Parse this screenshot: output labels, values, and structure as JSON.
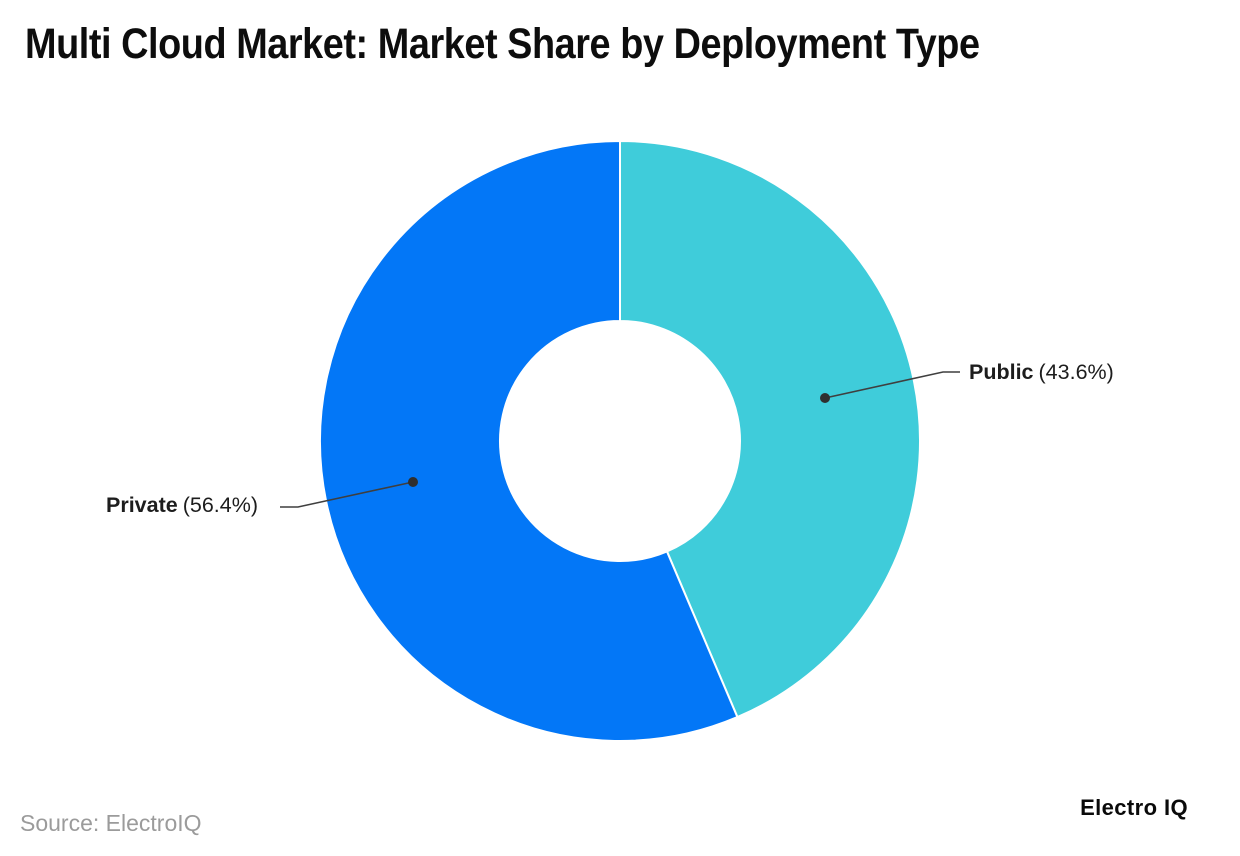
{
  "title": "Multi Cloud Market: Market Share by Deployment Type",
  "source": "Source: ElectroIQ",
  "brand": "Electro IQ",
  "colors": {
    "public_slice": "#3fccda",
    "private_slice": "#0377f7",
    "leader_line": "#3f3f3f",
    "leader_dot": "#2f2f2f",
    "title_text": "#0d0d0d",
    "source_text": "#9b9b9b"
  },
  "chart_data": {
    "type": "pie",
    "subtype": "donut",
    "title": "Multi Cloud Market: Market Share by Deployment Type",
    "categories": [
      "Public",
      "Private"
    ],
    "values": [
      43.6,
      56.4
    ],
    "unit": "%",
    "colors": [
      "#3fccda",
      "#0377f7"
    ],
    "start_angle_deg": -90,
    "direction": "clockwise",
    "inner_radius_ratio": 0.4,
    "labels": [
      "Public (43.6%)",
      "Private (56.4%)"
    ],
    "legend_position": "none",
    "grid": false
  },
  "callouts": {
    "public": {
      "name": "Public",
      "pct": "(43.6%)"
    },
    "private": {
      "name": "Private",
      "pct": "(56.4%)"
    }
  }
}
